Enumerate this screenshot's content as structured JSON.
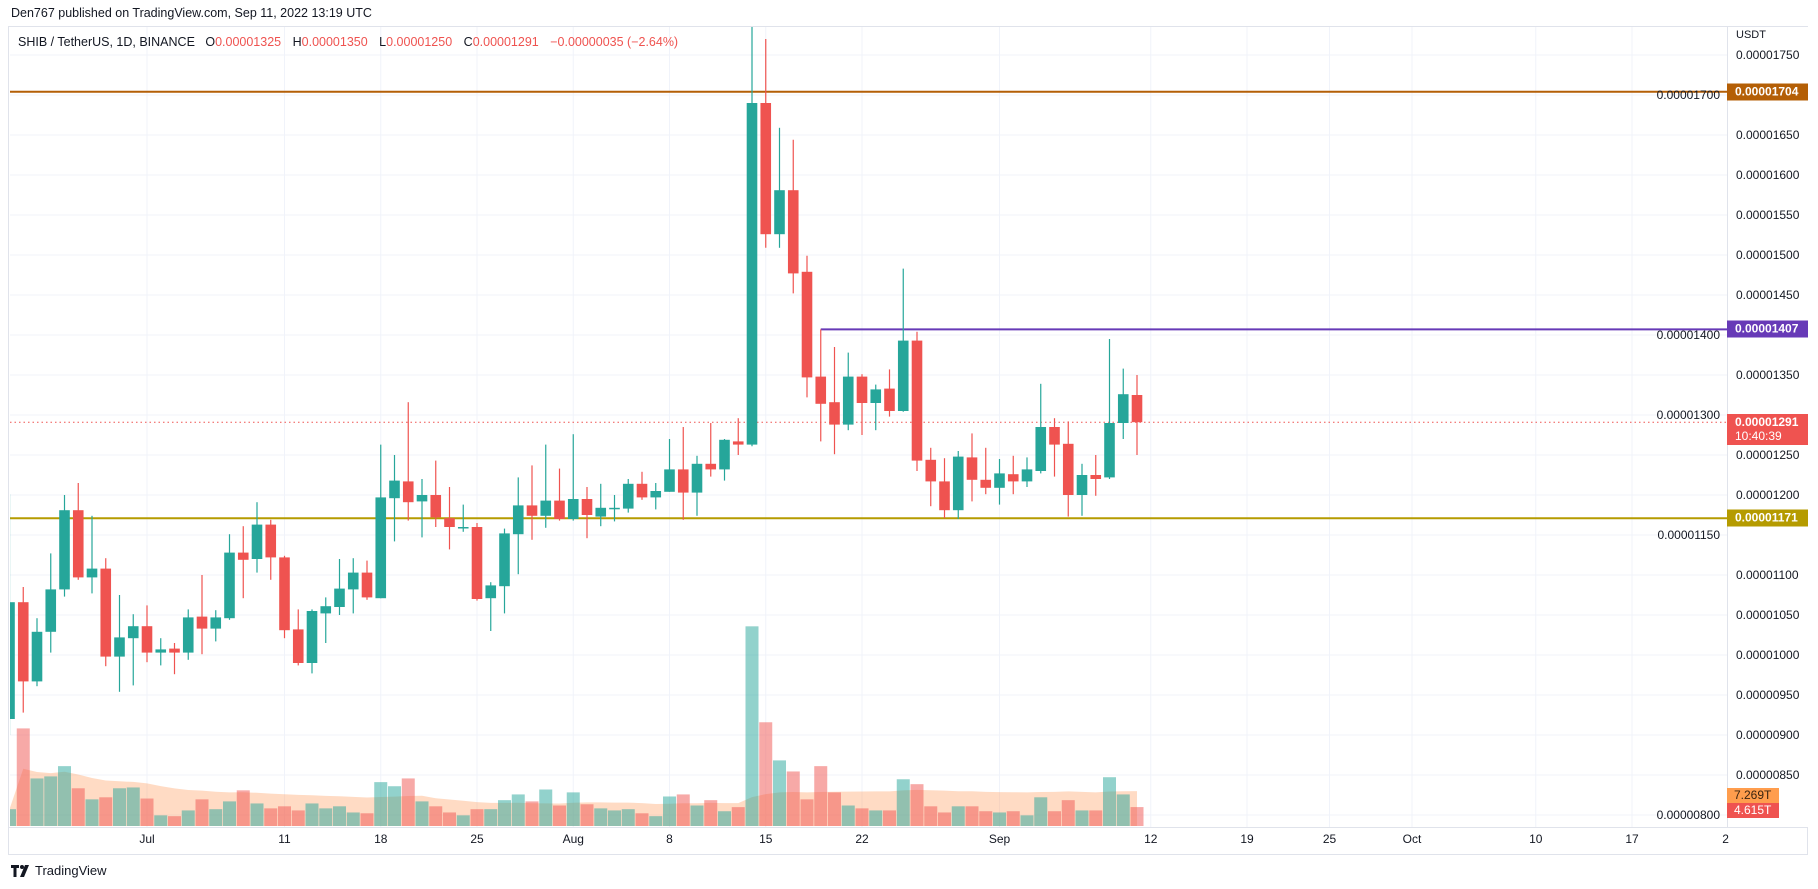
{
  "header": {
    "published": "Den767 published on TradingView.com, Sep 11, 2022 13:19 UTC"
  },
  "legend": {
    "symbol": "SHIB / TetherUS, 1D, BINANCE",
    "o_label": "O",
    "open": "0.00001325",
    "h_label": "H",
    "high": "0.00001350",
    "l_label": "L",
    "low": "0.00001250",
    "c_label": "C",
    "close": "0.00001291",
    "change": "−0.00000035 (−2.64%)"
  },
  "price_axis": {
    "currency": "USDT",
    "ticks": [
      "0.00000800",
      "0.00000850",
      "0.00000900",
      "0.00000950",
      "0.00001000",
      "0.00001050",
      "0.00001100",
      "0.00001150",
      "0.00001200",
      "0.00001250",
      "0.00001300",
      "0.00001350",
      "0.00001400",
      "0.00001450",
      "0.00001500",
      "0.00001550",
      "0.00001600",
      "0.00001650",
      "0.00001700",
      "0.00001750"
    ]
  },
  "x_axis": {
    "ticks": [
      {
        "label": "Jul",
        "date": "2022-07-01"
      },
      {
        "label": "11",
        "date": "2022-07-11"
      },
      {
        "label": "18",
        "date": "2022-07-18"
      },
      {
        "label": "25",
        "date": "2022-07-25"
      },
      {
        "label": "Aug",
        "date": "2022-08-01"
      },
      {
        "label": "8",
        "date": "2022-08-08"
      },
      {
        "label": "15",
        "date": "2022-08-15"
      },
      {
        "label": "22",
        "date": "2022-08-22"
      },
      {
        "label": "Sep",
        "date": "2022-09-01"
      },
      {
        "label": "12",
        "date": "2022-09-12"
      },
      {
        "label": "19",
        "date": "2022-09-19"
      },
      {
        "label": "25",
        "date": "2022-09-25"
      },
      {
        "label": "Oct",
        "date": "2022-10-01"
      },
      {
        "label": "10",
        "date": "2022-10-10"
      },
      {
        "label": "17",
        "date": "2022-10-17"
      },
      {
        "label": "2",
        "date": "2022-10-24"
      }
    ]
  },
  "horizontal_lines": [
    {
      "price": "0.00001704",
      "color": "#b45f06",
      "from_date": null
    },
    {
      "price": "0.00001407",
      "color": "#673ab7",
      "from_date": "2022-08-19"
    },
    {
      "price": "0.00001171",
      "color": "#b59b00",
      "from_date": null
    }
  ],
  "current_price": {
    "price": "0.00001291",
    "countdown": "10:40:39",
    "color": "#ef5350"
  },
  "volume_labels": {
    "ma": "7.269T",
    "ma_color": "#ff9d4d",
    "last": "4.615T",
    "last_color": "#ef5350"
  },
  "colors": {
    "up": "#26a69a",
    "down": "#ef5350"
  },
  "logo": {
    "text": "TradingView"
  },
  "chart_data": {
    "type": "candlestick",
    "symbol": "SHIB / TetherUS",
    "interval": "1D",
    "ylabel": "USDT",
    "ylim": [
      7.9e-06,
      1.76e-05
    ],
    "xlim": [
      "2022-06-21",
      "2022-10-24"
    ],
    "grid": true,
    "volume_unit": "T",
    "columns": [
      "date",
      "open",
      "high",
      "low",
      "close",
      "volume"
    ],
    "candles": [
      [
        "2022-06-21",
        9.2e-06,
        1.201e-05,
        9e-06,
        1.066e-05,
        4.1
      ],
      [
        "2022-06-22",
        1.066e-05,
        1.085e-05,
        9.28e-06,
        9.67e-06,
        23.8
      ],
      [
        "2022-06-23",
        9.67e-06,
        1.046e-05,
        9.61e-06,
        1.029e-05,
        11.6
      ],
      [
        "2022-06-24",
        1.029e-05,
        1.127e-05,
        1.003e-05,
        1.082e-05,
        12.1
      ],
      [
        "2022-06-25",
        1.082e-05,
        1.2e-05,
        1.073e-05,
        1.181e-05,
        14.6
      ],
      [
        "2022-06-26",
        1.181e-05,
        1.215e-05,
        1.094e-05,
        1.097e-05,
        9.2
      ],
      [
        "2022-06-27",
        1.097e-05,
        1.174e-05,
        1.077e-05,
        1.108e-05,
        6.5
      ],
      [
        "2022-06-28",
        1.108e-05,
        1.121e-05,
        9.86e-06,
        9.98e-06,
        7.0
      ],
      [
        "2022-06-29",
        9.98e-06,
        1.075e-05,
        9.54e-06,
        1.022e-05,
        9.2
      ],
      [
        "2022-06-30",
        1.021e-05,
        1.051e-05,
        9.62e-06,
        1.036e-05,
        9.4
      ],
      [
        "2022-07-01",
        1.036e-05,
        1.062e-05,
        9.91e-06,
        1.003e-05,
        6.7
      ],
      [
        "2022-07-02",
        1.003e-05,
        1.021e-05,
        9.87e-06,
        1.007e-05,
        2.6
      ],
      [
        "2022-07-03",
        1.008e-05,
        1.015e-05,
        9.76e-06,
        1.003e-05,
        2.4
      ],
      [
        "2022-07-04",
        1.003e-05,
        1.057e-05,
        9.94e-06,
        1.047e-05,
        3.8
      ],
      [
        "2022-07-05",
        1.048e-05,
        1.1e-05,
        1.001e-05,
        1.033e-05,
        6.5
      ],
      [
        "2022-07-06",
        1.033e-05,
        1.056e-05,
        1.017e-05,
        1.047e-05,
        4.1
      ],
      [
        "2022-07-07",
        1.046e-05,
        1.151e-05,
        1.044e-05,
        1.128e-05,
        6.0
      ],
      [
        "2022-07-08",
        1.128e-05,
        1.161e-05,
        1.071e-05,
        1.119e-05,
        8.7
      ],
      [
        "2022-07-09",
        1.12e-05,
        1.191e-05,
        1.103e-05,
        1.163e-05,
        5.5
      ],
      [
        "2022-07-10",
        1.163e-05,
        1.169e-05,
        1.094e-05,
        1.122e-05,
        4.3
      ],
      [
        "2022-07-11",
        1.122e-05,
        1.124e-05,
        1.021e-05,
        1.031e-05,
        4.8
      ],
      [
        "2022-07-12",
        1.032e-05,
        1.057e-05,
        9.87e-06,
        9.9e-06,
        3.8
      ],
      [
        "2022-07-13",
        9.9e-06,
        1.057e-05,
        9.77e-06,
        1.055e-05,
        5.5
      ],
      [
        "2022-07-14",
        1.052e-05,
        1.072e-05,
        1.015e-05,
        1.061e-05,
        4.3
      ],
      [
        "2022-07-15",
        1.06e-05,
        1.12e-05,
        1.05e-05,
        1.083e-05,
        4.8
      ],
      [
        "2022-07-16",
        1.082e-05,
        1.121e-05,
        1.052e-05,
        1.103e-05,
        3.3
      ],
      [
        "2022-07-17",
        1.103e-05,
        1.118e-05,
        1.069e-05,
        1.072e-05,
        3.1
      ],
      [
        "2022-07-18",
        1.071e-05,
        1.263e-05,
        1.071e-05,
        1.197e-05,
        10.7
      ],
      [
        "2022-07-19",
        1.196e-05,
        1.25e-05,
        1.142e-05,
        1.218e-05,
        9.7
      ],
      [
        "2022-07-20",
        1.217e-05,
        1.316e-05,
        1.168e-05,
        1.191e-05,
        11.6
      ],
      [
        "2022-07-21",
        1.192e-05,
        1.22e-05,
        1.147e-05,
        1.2e-05,
        6.0
      ],
      [
        "2022-07-22",
        1.2e-05,
        1.243e-05,
        1.16e-05,
        1.172e-05,
        4.8
      ],
      [
        "2022-07-23",
        1.171e-05,
        1.21e-05,
        1.132e-05,
        1.16e-05,
        3.3
      ],
      [
        "2022-07-24",
        1.159e-05,
        1.188e-05,
        1.154e-05,
        1.16e-05,
        2.6
      ],
      [
        "2022-07-25",
        1.16e-05,
        1.165e-05,
        1.068e-05,
        1.07e-05,
        4.1
      ],
      [
        "2022-07-26",
        1.071e-05,
        1.091e-05,
        1.03e-05,
        1.087e-05,
        4.1
      ],
      [
        "2022-07-27",
        1.086e-05,
        1.158e-05,
        1.052e-05,
        1.152e-05,
        6.3
      ],
      [
        "2022-07-28",
        1.151e-05,
        1.222e-05,
        1.101e-05,
        1.187e-05,
        7.7
      ],
      [
        "2022-07-29",
        1.187e-05,
        1.237e-05,
        1.144e-05,
        1.174e-05,
        6.0
      ],
      [
        "2022-07-30",
        1.174e-05,
        1.263e-05,
        1.159e-05,
        1.193e-05,
        8.9
      ],
      [
        "2022-07-31",
        1.193e-05,
        1.233e-05,
        1.168e-05,
        1.17e-05,
        5.0
      ],
      [
        "2022-08-01",
        1.17e-05,
        1.276e-05,
        1.168e-05,
        1.195e-05,
        8.2
      ],
      [
        "2022-08-02",
        1.195e-05,
        1.21e-05,
        1.146e-05,
        1.175e-05,
        5.3
      ],
      [
        "2022-08-03",
        1.173e-05,
        1.214e-05,
        1.161e-05,
        1.184e-05,
        4.3
      ],
      [
        "2022-08-04",
        1.183e-05,
        1.2e-05,
        1.167e-05,
        1.184e-05,
        3.8
      ],
      [
        "2022-08-05",
        1.183e-05,
        1.22e-05,
        1.178e-05,
        1.214e-05,
        4.1
      ],
      [
        "2022-08-06",
        1.214e-05,
        1.229e-05,
        1.194e-05,
        1.197e-05,
        3.1
      ],
      [
        "2022-08-07",
        1.197e-05,
        1.215e-05,
        1.182e-05,
        1.205e-05,
        2.4
      ],
      [
        "2022-08-08",
        1.204e-05,
        1.27e-05,
        1.204e-05,
        1.232e-05,
        7.2
      ],
      [
        "2022-08-09",
        1.232e-05,
        1.285e-05,
        1.169e-05,
        1.203e-05,
        7.7
      ],
      [
        "2022-08-10",
        1.203e-05,
        1.249e-05,
        1.174e-05,
        1.239e-05,
        5.0
      ],
      [
        "2022-08-11",
        1.239e-05,
        1.29e-05,
        1.223e-05,
        1.232e-05,
        6.3
      ],
      [
        "2022-08-12",
        1.232e-05,
        1.27e-05,
        1.218e-05,
        1.269e-05,
        3.6
      ],
      [
        "2022-08-13",
        1.267e-05,
        1.296e-05,
        1.25e-05,
        1.263e-05,
        4.6
      ],
      [
        "2022-08-14",
        1.263e-05,
        1.785e-05,
        1.261e-05,
        1.69e-05,
        48.7
      ],
      [
        "2022-08-15",
        1.69e-05,
        1.77e-05,
        1.509e-05,
        1.526e-05,
        25.3
      ],
      [
        "2022-08-16",
        1.526e-05,
        1.659e-05,
        1.509e-05,
        1.581e-05,
        16.0
      ],
      [
        "2022-08-17",
        1.581e-05,
        1.644e-05,
        1.452e-05,
        1.477e-05,
        13.3
      ],
      [
        "2022-08-18",
        1.479e-05,
        1.499e-05,
        1.322e-05,
        1.347e-05,
        6.5
      ],
      [
        "2022-08-19",
        1.348e-05,
        1.407e-05,
        1.267e-05,
        1.314e-05,
        14.6
      ],
      [
        "2022-08-20",
        1.316e-05,
        1.385e-05,
        1.251e-05,
        1.288e-05,
        8.2
      ],
      [
        "2022-08-21",
        1.288e-05,
        1.378e-05,
        1.281e-05,
        1.348e-05,
        5.0
      ],
      [
        "2022-08-22",
        1.348e-05,
        1.351e-05,
        1.275e-05,
        1.315e-05,
        4.3
      ],
      [
        "2022-08-23",
        1.315e-05,
        1.338e-05,
        1.281e-05,
        1.332e-05,
        3.8
      ],
      [
        "2022-08-24",
        1.333e-05,
        1.357e-05,
        1.298e-05,
        1.305e-05,
        3.8
      ],
      [
        "2022-08-25",
        1.305e-05,
        1.483e-05,
        1.304e-05,
        1.393e-05,
        11.4
      ],
      [
        "2022-08-26",
        1.393e-05,
        1.404e-05,
        1.23e-05,
        1.243e-05,
        10.2
      ],
      [
        "2022-08-27",
        1.244e-05,
        1.259e-05,
        1.186e-05,
        1.217e-05,
        4.8
      ],
      [
        "2022-08-28",
        1.217e-05,
        1.246e-05,
        1.171e-05,
        1.181e-05,
        3.3
      ],
      [
        "2022-08-29",
        1.181e-05,
        1.255e-05,
        1.17e-05,
        1.248e-05,
        4.8
      ],
      [
        "2022-08-30",
        1.247e-05,
        1.277e-05,
        1.192e-05,
        1.219e-05,
        4.8
      ],
      [
        "2022-08-31",
        1.219e-05,
        1.259e-05,
        1.201e-05,
        1.209e-05,
        3.6
      ],
      [
        "2022-09-01",
        1.209e-05,
        1.245e-05,
        1.188e-05,
        1.227e-05,
        3.3
      ],
      [
        "2022-09-02",
        1.226e-05,
        1.249e-05,
        1.201e-05,
        1.217e-05,
        3.6
      ],
      [
        "2022-09-03",
        1.217e-05,
        1.247e-05,
        1.21e-05,
        1.232e-05,
        2.6
      ],
      [
        "2022-09-04",
        1.23e-05,
        1.339e-05,
        1.227e-05,
        1.285e-05,
        7.0
      ],
      [
        "2022-09-05",
        1.285e-05,
        1.296e-05,
        1.223e-05,
        1.263e-05,
        3.6
      ],
      [
        "2022-09-06",
        1.264e-05,
        1.292e-05,
        1.173e-05,
        1.2e-05,
        6.3
      ],
      [
        "2022-09-07",
        1.2e-05,
        1.239e-05,
        1.174e-05,
        1.225e-05,
        3.8
      ],
      [
        "2022-09-08",
        1.225e-05,
        1.25e-05,
        1.199e-05,
        1.22e-05,
        3.8
      ],
      [
        "2022-09-09",
        1.222e-05,
        1.395e-05,
        1.22e-05,
        1.29e-05,
        11.9
      ],
      [
        "2022-09-10",
        1.29e-05,
        1.358e-05,
        1.27e-05,
        1.326e-05,
        7.7
      ],
      [
        "2022-09-11",
        1.325e-05,
        1.35e-05,
        1.25e-05,
        1.291e-05,
        4.615
      ]
    ]
  }
}
